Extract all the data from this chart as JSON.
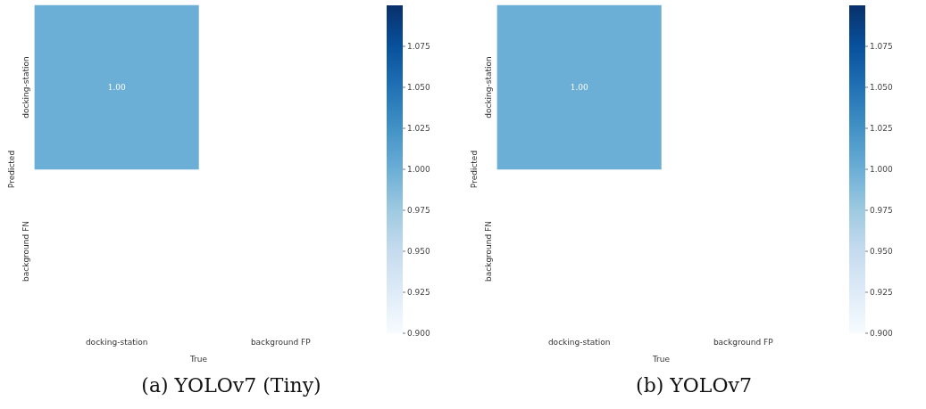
{
  "chart_data": [
    {
      "type": "heatmap",
      "title": "(a) YOLOv7 (Tiny)",
      "xlabel": "True",
      "ylabel": "Predicted",
      "categories": [
        "docking-station",
        "background FP"
      ],
      "y_categories": [
        "docking-station",
        "background FN"
      ],
      "cells": [
        [
          1.0,
          null
        ],
        [
          null,
          null
        ]
      ],
      "cell_labels": [
        [
          "1.00",
          null
        ],
        [
          null,
          null
        ]
      ],
      "clim": [
        0.9,
        1.1
      ],
      "cticks": [
        {
          "value": 0.9,
          "label": "0.900"
        },
        {
          "value": 0.925,
          "label": "0.925"
        },
        {
          "value": 0.95,
          "label": "0.950"
        },
        {
          "value": 0.975,
          "label": "0.975"
        },
        {
          "value": 1.0,
          "label": "1.000"
        },
        {
          "value": 1.025,
          "label": "1.025"
        },
        {
          "value": 1.05,
          "label": "1.050"
        },
        {
          "value": 1.075,
          "label": "1.075"
        }
      ]
    },
    {
      "type": "heatmap",
      "title": "(b) YOLOv7",
      "xlabel": "True",
      "ylabel": "Predicted",
      "categories": [
        "docking-station",
        "background FP"
      ],
      "y_categories": [
        "docking-station",
        "background FN"
      ],
      "cells": [
        [
          1.0,
          null
        ],
        [
          null,
          null
        ]
      ],
      "cell_labels": [
        [
          "1.00",
          null
        ],
        [
          null,
          null
        ]
      ],
      "clim": [
        0.9,
        1.1
      ],
      "cticks": [
        {
          "value": 0.9,
          "label": "0.900"
        },
        {
          "value": 0.925,
          "label": "0.925"
        },
        {
          "value": 0.95,
          "label": "0.950"
        },
        {
          "value": 0.975,
          "label": "0.975"
        },
        {
          "value": 1.0,
          "label": "1.000"
        },
        {
          "value": 1.025,
          "label": "1.025"
        },
        {
          "value": 1.05,
          "label": "1.050"
        },
        {
          "value": 1.075,
          "label": "1.075"
        }
      ]
    }
  ]
}
